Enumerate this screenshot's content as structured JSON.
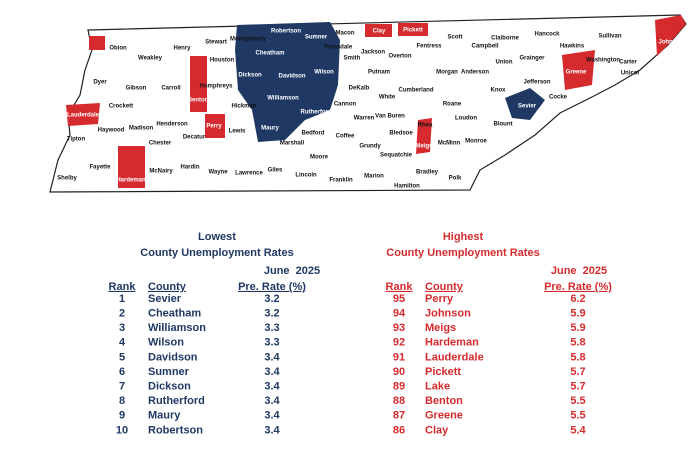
{
  "map": {
    "labels": [
      "Obion",
      "Henry",
      "Stewart",
      "Montgomery",
      "Robertson",
      "Sumner",
      "Macon",
      "Clay",
      "Pickett",
      "Scott",
      "Claiborne",
      "Hancock",
      "Sullivan",
      "Johnson",
      "Weakley",
      "Dyer",
      "Houston",
      "Cheatham",
      "Trousdale",
      "Jackson",
      "Overton",
      "Fentress",
      "Campbell",
      "Union",
      "Grainger",
      "Hawkins",
      "Washington",
      "Carter",
      "Unicoi",
      "Greene",
      "Gibson",
      "Carroll",
      "Humphreys",
      "Dickson",
      "Davidson",
      "Wilson",
      "Smith",
      "Putnam",
      "Morgan",
      "Anderson",
      "Knox",
      "Jefferson",
      "Cocke",
      "Crockett",
      "Lauderdale",
      "Benton",
      "Perry",
      "Hickman",
      "Williamson",
      "Rutherford",
      "DeKalb",
      "White",
      "Cumberland",
      "Roane",
      "Loudon",
      "Blount",
      "Sevier",
      "Cannon",
      "Van Buren",
      "Warren",
      "Haywood",
      "Madison",
      "Henderson",
      "Decatur",
      "Lewis",
      "Maury",
      "Marshall",
      "Bedford",
      "Coffee",
      "Grundy",
      "Bledsoe",
      "Rhea",
      "Meigs",
      "McMinn",
      "Monroe",
      "Tipton",
      "Chester",
      "Hardin",
      "Wayne",
      "Lawrence",
      "Giles",
      "Lincoln",
      "Moore",
      "Franklin",
      "Marion",
      "Sequatchie",
      "Hamilton",
      "Bradley",
      "Polk",
      "Shelby",
      "Fayette",
      "Hardeman",
      "McNairy"
    ]
  },
  "tables": {
    "lowest": {
      "title": [
        "Lowest",
        "County Unemployment Rates"
      ],
      "period": "June  2025",
      "columns": [
        "Rank",
        "County",
        "Pre. Rate (%)"
      ],
      "rows": [
        [
          1,
          "Sevier",
          3.2
        ],
        [
          2,
          "Cheatham",
          3.2
        ],
        [
          3,
          "Williamson",
          3.3
        ],
        [
          4,
          "Wilson",
          3.3
        ],
        [
          5,
          "Davidson",
          3.4
        ],
        [
          6,
          "Sumner",
          3.4
        ],
        [
          7,
          "Dickson",
          3.4
        ],
        [
          8,
          "Rutherford",
          3.4
        ],
        [
          9,
          "Maury",
          3.4
        ],
        [
          10,
          "Robertson",
          3.4
        ]
      ]
    },
    "highest": {
      "title": [
        "Highest",
        "County Unemployment Rates"
      ],
      "period": "June  2025",
      "columns": [
        "Rank",
        "County",
        "Pre. Rate (%)"
      ],
      "rows": [
        [
          95,
          "Perry",
          6.2
        ],
        [
          94,
          "Johnson",
          5.9
        ],
        [
          93,
          "Meigs",
          5.9
        ],
        [
          92,
          "Hardeman",
          5.8
        ],
        [
          91,
          "Lauderdale",
          5.8
        ],
        [
          90,
          "Pickett",
          5.7
        ],
        [
          89,
          "Lake",
          5.7
        ],
        [
          88,
          "Benton",
          5.5
        ],
        [
          87,
          "Greene",
          5.5
        ],
        [
          86,
          "Clay",
          5.4
        ]
      ]
    }
  }
}
